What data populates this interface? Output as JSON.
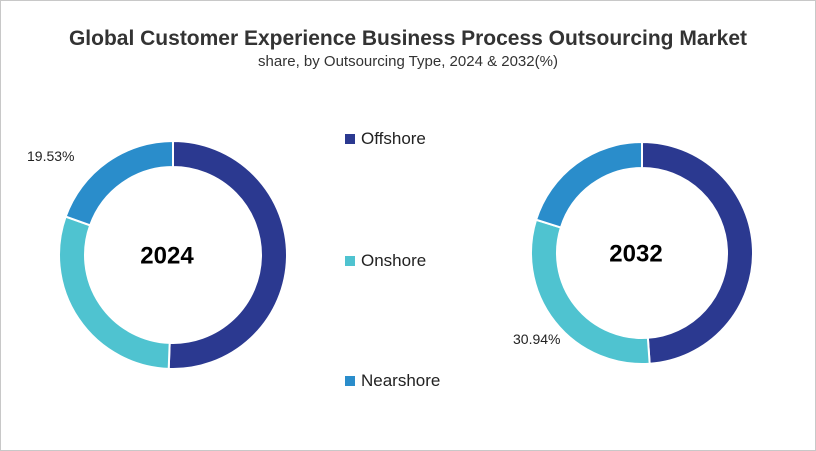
{
  "chart_data": {
    "type": "pie",
    "title": "Global Customer Experience Business Process Outsourcing Market",
    "subtitle": "share, by Outsourcing Type, 2024 & 2032(%)",
    "categories": [
      "Offshore",
      "Onshore",
      "Nearshore"
    ],
    "colors": [
      "#2b3990",
      "#4fc3d0",
      "#2a8dcb"
    ],
    "donut": true,
    "legend_position": "center",
    "charts": [
      {
        "center_label": "2024",
        "values": [
          50.6,
          29.87,
          19.53
        ],
        "printed_labels": {
          "Nearshore": "19.53%"
        }
      },
      {
        "center_label": "2032",
        "values": [
          48.9,
          30.94,
          20.16
        ],
        "printed_labels": {
          "Onshore": "30.94%"
        }
      }
    ]
  }
}
